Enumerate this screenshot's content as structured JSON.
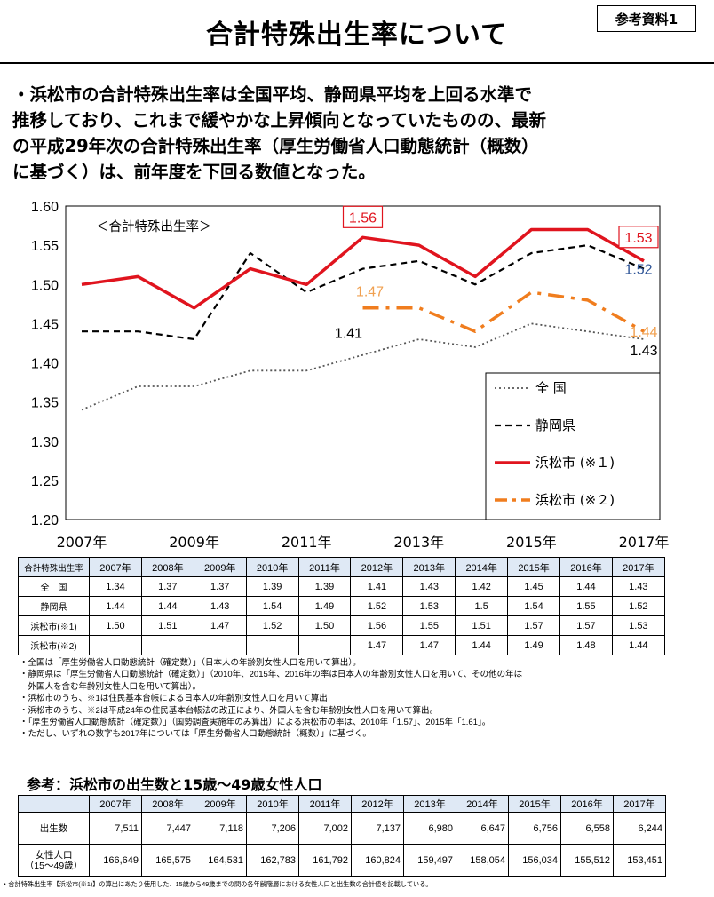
{
  "header": {
    "title": "合計特殊出生率について",
    "badge": "参考資料1"
  },
  "summary": "・浜松市の合計特殊出生率は全国平均、静岡県平均を上回る水準で\n 推移しており、これまで緩やかな上昇傾向となっていたものの、最新\n の平成29年次の合計特殊出生率（厚生労働省人口動態統計（概数）\n に基づく）は、前年度を下回る数値となった。",
  "chart_data": {
    "type": "line",
    "title": "＜合計特殊出生率＞",
    "x": [
      "2007年",
      "2008年",
      "2009年",
      "2010年",
      "2011年",
      "2012年",
      "2013年",
      "2014年",
      "2015年",
      "2016年",
      "2017年"
    ],
    "xtick_labels": [
      "2007年",
      "2009年",
      "2011年",
      "2013年",
      "2015年",
      "2017年"
    ],
    "ylim": [
      1.2,
      1.6
    ],
    "yticks": [
      "1.20",
      "1.25",
      "1.30",
      "1.35",
      "1.40",
      "1.45",
      "1.50",
      "1.55",
      "1.60"
    ],
    "legend_position": "bottom-right",
    "series": [
      {
        "name": "全 国",
        "style": "dotted",
        "color": "#555555",
        "values": [
          1.34,
          1.37,
          1.37,
          1.39,
          1.39,
          1.41,
          1.43,
          1.42,
          1.45,
          1.44,
          1.43
        ]
      },
      {
        "name": "静岡県",
        "style": "dashed",
        "color": "#000000",
        "values": [
          1.44,
          1.44,
          1.43,
          1.54,
          1.49,
          1.52,
          1.53,
          1.5,
          1.54,
          1.55,
          1.52
        ]
      },
      {
        "name": "浜松市 (※１)",
        "style": "solid",
        "color": "#e0141e",
        "values": [
          1.5,
          1.51,
          1.47,
          1.52,
          1.5,
          1.56,
          1.55,
          1.51,
          1.57,
          1.57,
          1.53
        ]
      },
      {
        "name": "浜松市 (※２)",
        "style": "dashdot",
        "color": "#f07d1e",
        "values": [
          null,
          null,
          null,
          null,
          null,
          1.47,
          1.47,
          1.44,
          1.49,
          1.48,
          1.44
        ]
      }
    ],
    "annotations": [
      {
        "text": "1.56",
        "series": 2,
        "index": 5,
        "color": "#e0141e",
        "boxed": true
      },
      {
        "text": "1.53",
        "series": 2,
        "index": 10,
        "color": "#e0141e",
        "boxed": true
      },
      {
        "text": "1.52",
        "series": 1,
        "index": 10,
        "color": "#2f5597",
        "boxed": false
      },
      {
        "text": "1.47",
        "series": 3,
        "index": 5,
        "color": "#f0a050",
        "boxed": false
      },
      {
        "text": "1.44",
        "series": 3,
        "index": 10,
        "color": "#f0a050",
        "boxed": false
      },
      {
        "text": "1.41",
        "series": 0,
        "index": 5,
        "color": "#000000",
        "boxed": false
      },
      {
        "text": "1.43",
        "series": 0,
        "index": 10,
        "color": "#000000",
        "boxed": false
      }
    ]
  },
  "rate_table": {
    "corner": "合計特殊出生率",
    "years": [
      "2007年",
      "2008年",
      "2009年",
      "2010年",
      "2011年",
      "2012年",
      "2013年",
      "2014年",
      "2015年",
      "2016年",
      "2017年"
    ],
    "rows": [
      {
        "label": "全　国",
        "values": [
          "1.34",
          "1.37",
          "1.37",
          "1.39",
          "1.39",
          "1.41",
          "1.43",
          "1.42",
          "1.45",
          "1.44",
          "1.43"
        ]
      },
      {
        "label": "静岡県",
        "values": [
          "1.44",
          "1.44",
          "1.43",
          "1.54",
          "1.49",
          "1.52",
          "1.53",
          "1.5",
          "1.54",
          "1.55",
          "1.52"
        ]
      },
      {
        "label": "浜松市(※1)",
        "values": [
          "1.50",
          "1.51",
          "1.47",
          "1.52",
          "1.50",
          "1.56",
          "1.55",
          "1.51",
          "1.57",
          "1.57",
          "1.53"
        ]
      },
      {
        "label": "浜松市(※2)",
        "values": [
          "",
          "",
          "",
          "",
          "",
          "1.47",
          "1.47",
          "1.44",
          "1.49",
          "1.48",
          "1.44"
        ]
      }
    ]
  },
  "notes": [
    "・全国は「厚生労働省人口動態統計（確定数）」（日本人の年齢別女性人口を用いて算出）。",
    "・静岡県は「厚生労働省人口動態統計（確定数）」（2010年、2015年、2016年の率は日本人の年齢別女性人口を用いて、その他の年は",
    "　外国人を含む年齢別女性人口を用いて算出）。",
    "・浜松市のうち、※1は住民基本台帳による日本人の年齢別女性人口を用いて算出",
    "・浜松市のうち、※2は平成24年の住民基本台帳法の改正により、外国人を含む年齢別女性人口を用いて算出。",
    "・「厚生労働省人口動態統計（確定数）」（国勢調査実施年のみ算出）による浜松市の率は、2010年「1.57」、2015年「1.61」。",
    "・ただし、いずれの数字も2017年については「厚生労働省人口動態統計（概数）」に基づく。"
  ],
  "births_section": {
    "title": "参考：浜松市の出生数と15歳～49歳女性人口",
    "years": [
      "2007年",
      "2008年",
      "2009年",
      "2010年",
      "2011年",
      "2012年",
      "2013年",
      "2014年",
      "2015年",
      "2016年",
      "2017年"
    ],
    "births_label": "出生数",
    "births": [
      "7,511",
      "7,447",
      "7,118",
      "7,206",
      "7,002",
      "7,137",
      "6,980",
      "6,647",
      "6,756",
      "6,558",
      "6,244"
    ],
    "women_label": "女性人口",
    "women_sublabel": "（15～49歳）",
    "women": [
      "166,649",
      "165,575",
      "164,531",
      "162,783",
      "161,792",
      "160,824",
      "159,497",
      "158,054",
      "156,034",
      "155,512",
      "153,451"
    ]
  },
  "footnote": "・合計特殊出生率【浜松市(※1)】の算出にあたり使用した、15歳から49歳までの間の各年齢階層における女性人口と出生数の合計値を記載している。"
}
